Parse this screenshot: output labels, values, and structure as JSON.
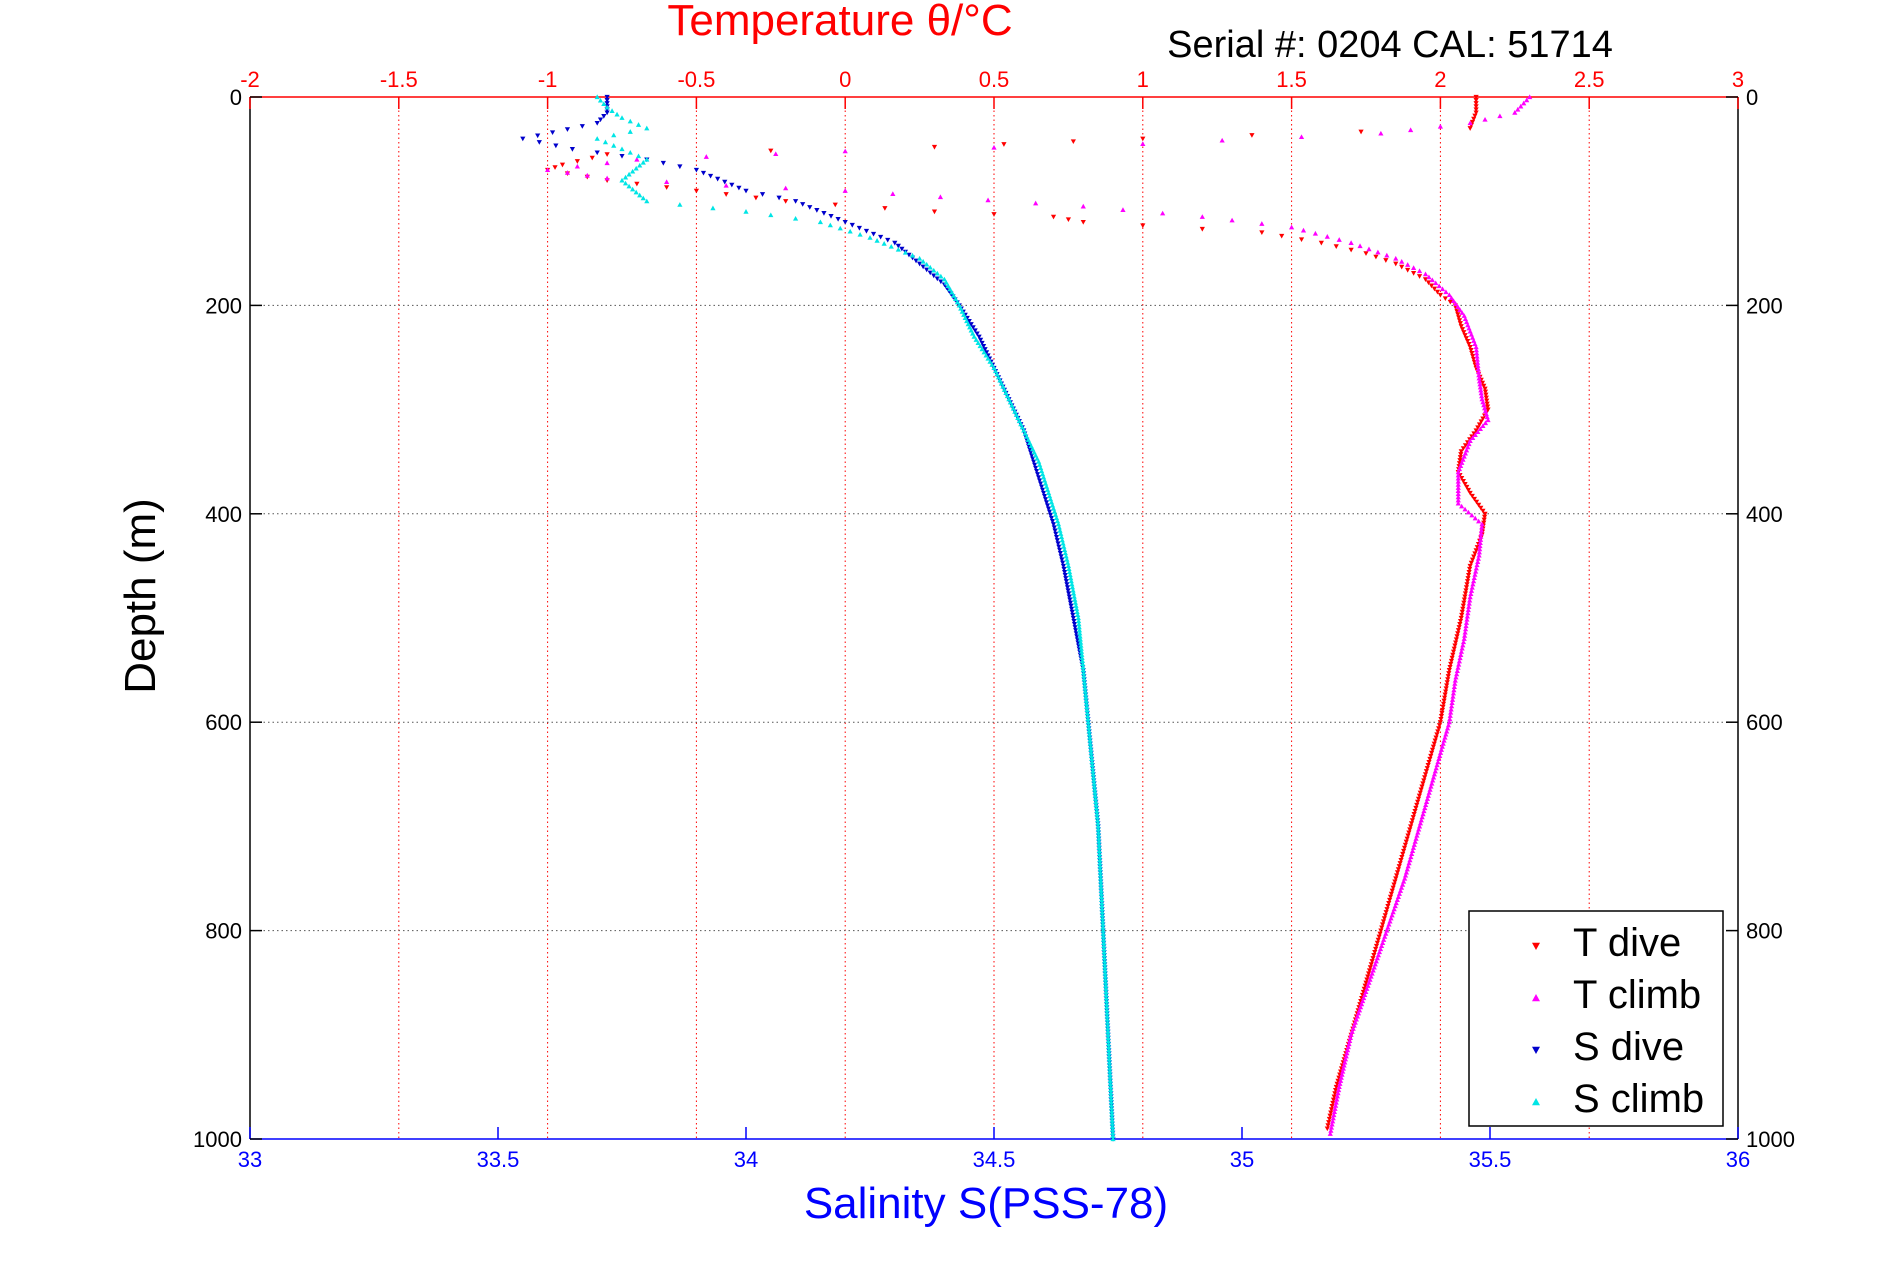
{
  "colors": {
    "t_dive": "#ff0000",
    "t_climb": "#ff00ff",
    "s_dive": "#0000cc",
    "s_climb": "#00e5e5",
    "temp_axis": "#ff0000",
    "sal_axis": "#0000ff",
    "depth_axis": "#000000"
  },
  "chart_data": {
    "type": "scatter",
    "title": "Temperature θ/°C",
    "subtitle": "Serial #: 0204  CAL: 51714",
    "ylabel": "Depth (m)",
    "xlabel": "Salinity S(PSS-78)",
    "grid": true,
    "legend_position": "bottom-right",
    "depth_axis": {
      "range": [
        0,
        1000
      ],
      "reversed": true,
      "ticks": [
        "0",
        "200",
        "400",
        "600",
        "800",
        "1000"
      ]
    },
    "temp_axis": {
      "range": [
        -2,
        3
      ],
      "ticks": [
        "-2",
        "-1.5",
        "-1",
        "-0.5",
        "0",
        "0.5",
        "1",
        "1.5",
        "2",
        "2.5",
        "3"
      ]
    },
    "salinity_axis": {
      "range": [
        33,
        36
      ],
      "ticks": [
        "33",
        "33.5",
        "34",
        "34.5",
        "35",
        "35.5",
        "36"
      ]
    },
    "series": [
      {
        "name": "T dive",
        "axis": "temp",
        "points": [
          [
            2.12,
            0
          ],
          [
            2.12,
            15
          ],
          [
            2.1,
            30
          ],
          [
            1.0,
            40
          ],
          [
            0.3,
            48
          ],
          [
            -0.8,
            55
          ],
          [
            -0.95,
            65
          ],
          [
            -1.0,
            70
          ],
          [
            -0.8,
            80
          ],
          [
            -0.5,
            90
          ],
          [
            -0.2,
            100
          ],
          [
            0.3,
            110
          ],
          [
            0.7,
            115
          ],
          [
            0.8,
            120
          ],
          [
            1.4,
            130
          ],
          [
            1.6,
            140
          ],
          [
            1.75,
            150
          ],
          [
            1.85,
            160
          ],
          [
            1.95,
            175
          ],
          [
            2.0,
            190
          ],
          [
            2.05,
            200
          ],
          [
            2.07,
            220
          ],
          [
            2.1,
            240
          ],
          [
            2.12,
            260
          ],
          [
            2.15,
            280
          ],
          [
            2.16,
            300
          ],
          [
            2.12,
            320
          ],
          [
            2.07,
            340
          ],
          [
            2.06,
            360
          ],
          [
            2.1,
            380
          ],
          [
            2.15,
            400
          ],
          [
            2.14,
            420
          ],
          [
            2.1,
            450
          ],
          [
            2.07,
            500
          ],
          [
            2.03,
            550
          ],
          [
            2.0,
            600
          ],
          [
            1.95,
            650
          ],
          [
            1.9,
            700
          ],
          [
            1.85,
            750
          ],
          [
            1.8,
            800
          ],
          [
            1.75,
            850
          ],
          [
            1.7,
            900
          ],
          [
            1.65,
            950
          ],
          [
            1.62,
            990
          ]
        ]
      },
      {
        "name": "T climb",
        "axis": "temp",
        "points": [
          [
            2.3,
            0
          ],
          [
            2.25,
            15
          ],
          [
            2.1,
            25
          ],
          [
            1.8,
            35
          ],
          [
            1.0,
            45
          ],
          [
            0.0,
            52
          ],
          [
            -0.7,
            60
          ],
          [
            -1.0,
            70
          ],
          [
            -0.8,
            78
          ],
          [
            -0.4,
            85
          ],
          [
            0.0,
            90
          ],
          [
            0.8,
            105
          ],
          [
            1.2,
            115
          ],
          [
            1.5,
            125
          ],
          [
            1.7,
            140
          ],
          [
            1.85,
            155
          ],
          [
            1.95,
            170
          ],
          [
            2.03,
            190
          ],
          [
            2.08,
            210
          ],
          [
            2.12,
            240
          ],
          [
            2.13,
            270
          ],
          [
            2.14,
            290
          ],
          [
            2.16,
            310
          ],
          [
            2.1,
            330
          ],
          [
            2.06,
            360
          ],
          [
            2.06,
            390
          ],
          [
            2.14,
            410
          ],
          [
            2.13,
            440
          ],
          [
            2.1,
            480
          ],
          [
            2.08,
            520
          ],
          [
            2.05,
            560
          ],
          [
            2.03,
            600
          ],
          [
            1.98,
            650
          ],
          [
            1.93,
            700
          ],
          [
            1.88,
            750
          ],
          [
            1.82,
            800
          ],
          [
            1.76,
            850
          ],
          [
            1.7,
            900
          ],
          [
            1.66,
            950
          ],
          [
            1.63,
            995
          ]
        ]
      },
      {
        "name": "S dive",
        "axis": "salinity",
        "points": [
          [
            33.72,
            0
          ],
          [
            33.72,
            15
          ],
          [
            33.7,
            25
          ],
          [
            33.55,
            40
          ],
          [
            33.65,
            50
          ],
          [
            33.8,
            60
          ],
          [
            33.9,
            70
          ],
          [
            34.0,
            90
          ],
          [
            34.1,
            100
          ],
          [
            34.2,
            120
          ],
          [
            34.3,
            140
          ],
          [
            34.35,
            160
          ],
          [
            34.4,
            180
          ],
          [
            34.43,
            200
          ],
          [
            34.47,
            230
          ],
          [
            34.5,
            260
          ],
          [
            34.53,
            290
          ],
          [
            34.56,
            320
          ],
          [
            34.58,
            350
          ],
          [
            34.6,
            380
          ],
          [
            34.62,
            410
          ],
          [
            34.64,
            450
          ],
          [
            34.66,
            500
          ],
          [
            34.68,
            550
          ],
          [
            34.69,
            600
          ],
          [
            34.7,
            650
          ],
          [
            34.71,
            700
          ],
          [
            34.715,
            750
          ],
          [
            34.72,
            800
          ],
          [
            34.725,
            850
          ],
          [
            34.73,
            900
          ],
          [
            34.735,
            950
          ],
          [
            34.74,
            1000
          ]
        ]
      },
      {
        "name": "S climb",
        "axis": "salinity",
        "points": [
          [
            33.7,
            0
          ],
          [
            33.72,
            10
          ],
          [
            33.75,
            20
          ],
          [
            33.8,
            30
          ],
          [
            33.7,
            40
          ],
          [
            33.75,
            50
          ],
          [
            33.8,
            60
          ],
          [
            33.75,
            80
          ],
          [
            33.8,
            100
          ],
          [
            34.0,
            110
          ],
          [
            34.15,
            120
          ],
          [
            34.25,
            135
          ],
          [
            34.35,
            155
          ],
          [
            34.4,
            175
          ],
          [
            34.43,
            200
          ],
          [
            34.46,
            230
          ],
          [
            34.5,
            260
          ],
          [
            34.53,
            290
          ],
          [
            34.56,
            320
          ],
          [
            34.59,
            350
          ],
          [
            34.61,
            380
          ],
          [
            34.63,
            410
          ],
          [
            34.65,
            450
          ],
          [
            34.67,
            500
          ],
          [
            34.68,
            550
          ],
          [
            34.69,
            600
          ],
          [
            34.7,
            650
          ],
          [
            34.71,
            700
          ],
          [
            34.715,
            750
          ],
          [
            34.72,
            800
          ],
          [
            34.725,
            850
          ],
          [
            34.73,
            900
          ],
          [
            34.735,
            950
          ],
          [
            34.74,
            1000
          ]
        ]
      }
    ]
  }
}
